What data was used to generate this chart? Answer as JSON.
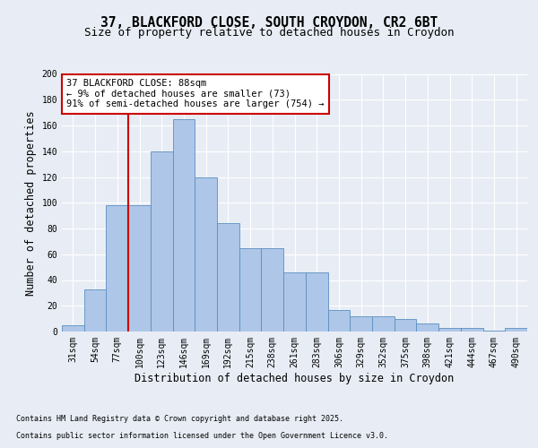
{
  "title_line1": "37, BLACKFORD CLOSE, SOUTH CROYDON, CR2 6BT",
  "title_line2": "Size of property relative to detached houses in Croydon",
  "xlabel": "Distribution of detached houses by size in Croydon",
  "ylabel": "Number of detached properties",
  "bar_values": [
    5,
    33,
    98,
    98,
    140,
    165,
    120,
    84,
    65,
    65,
    46,
    46,
    17,
    12,
    12,
    10,
    6,
    3,
    3,
    1,
    3
  ],
  "bin_labels": [
    "31sqm",
    "54sqm",
    "77sqm",
    "100sqm",
    "123sqm",
    "146sqm",
    "169sqm",
    "192sqm",
    "215sqm",
    "238sqm",
    "261sqm",
    "283sqm",
    "306sqm",
    "329sqm",
    "352sqm",
    "375sqm",
    "398sqm",
    "421sqm",
    "444sqm",
    "467sqm",
    "490sqm"
  ],
  "bar_color": "#aec6e8",
  "bar_edge_color": "#5a8fc0",
  "vline_color": "#cc0000",
  "annotation_text": "37 BLACKFORD CLOSE: 88sqm\n← 9% of detached houses are smaller (73)\n91% of semi-detached houses are larger (754) →",
  "annotation_box_color": "#ffffff",
  "annotation_box_edge": "#cc0000",
  "background_color": "#e8edf5",
  "plot_bg_color": "#e8edf5",
  "ylim": [
    0,
    200
  ],
  "yticks": [
    0,
    20,
    40,
    60,
    80,
    100,
    120,
    140,
    160,
    180,
    200
  ],
  "footer_line1": "Contains HM Land Registry data © Crown copyright and database right 2025.",
  "footer_line2": "Contains public sector information licensed under the Open Government Licence v3.0.",
  "title_fontsize": 10.5,
  "subtitle_fontsize": 9,
  "axis_label_fontsize": 8.5,
  "tick_fontsize": 7,
  "annotation_fontsize": 7.5,
  "footer_fontsize": 6
}
